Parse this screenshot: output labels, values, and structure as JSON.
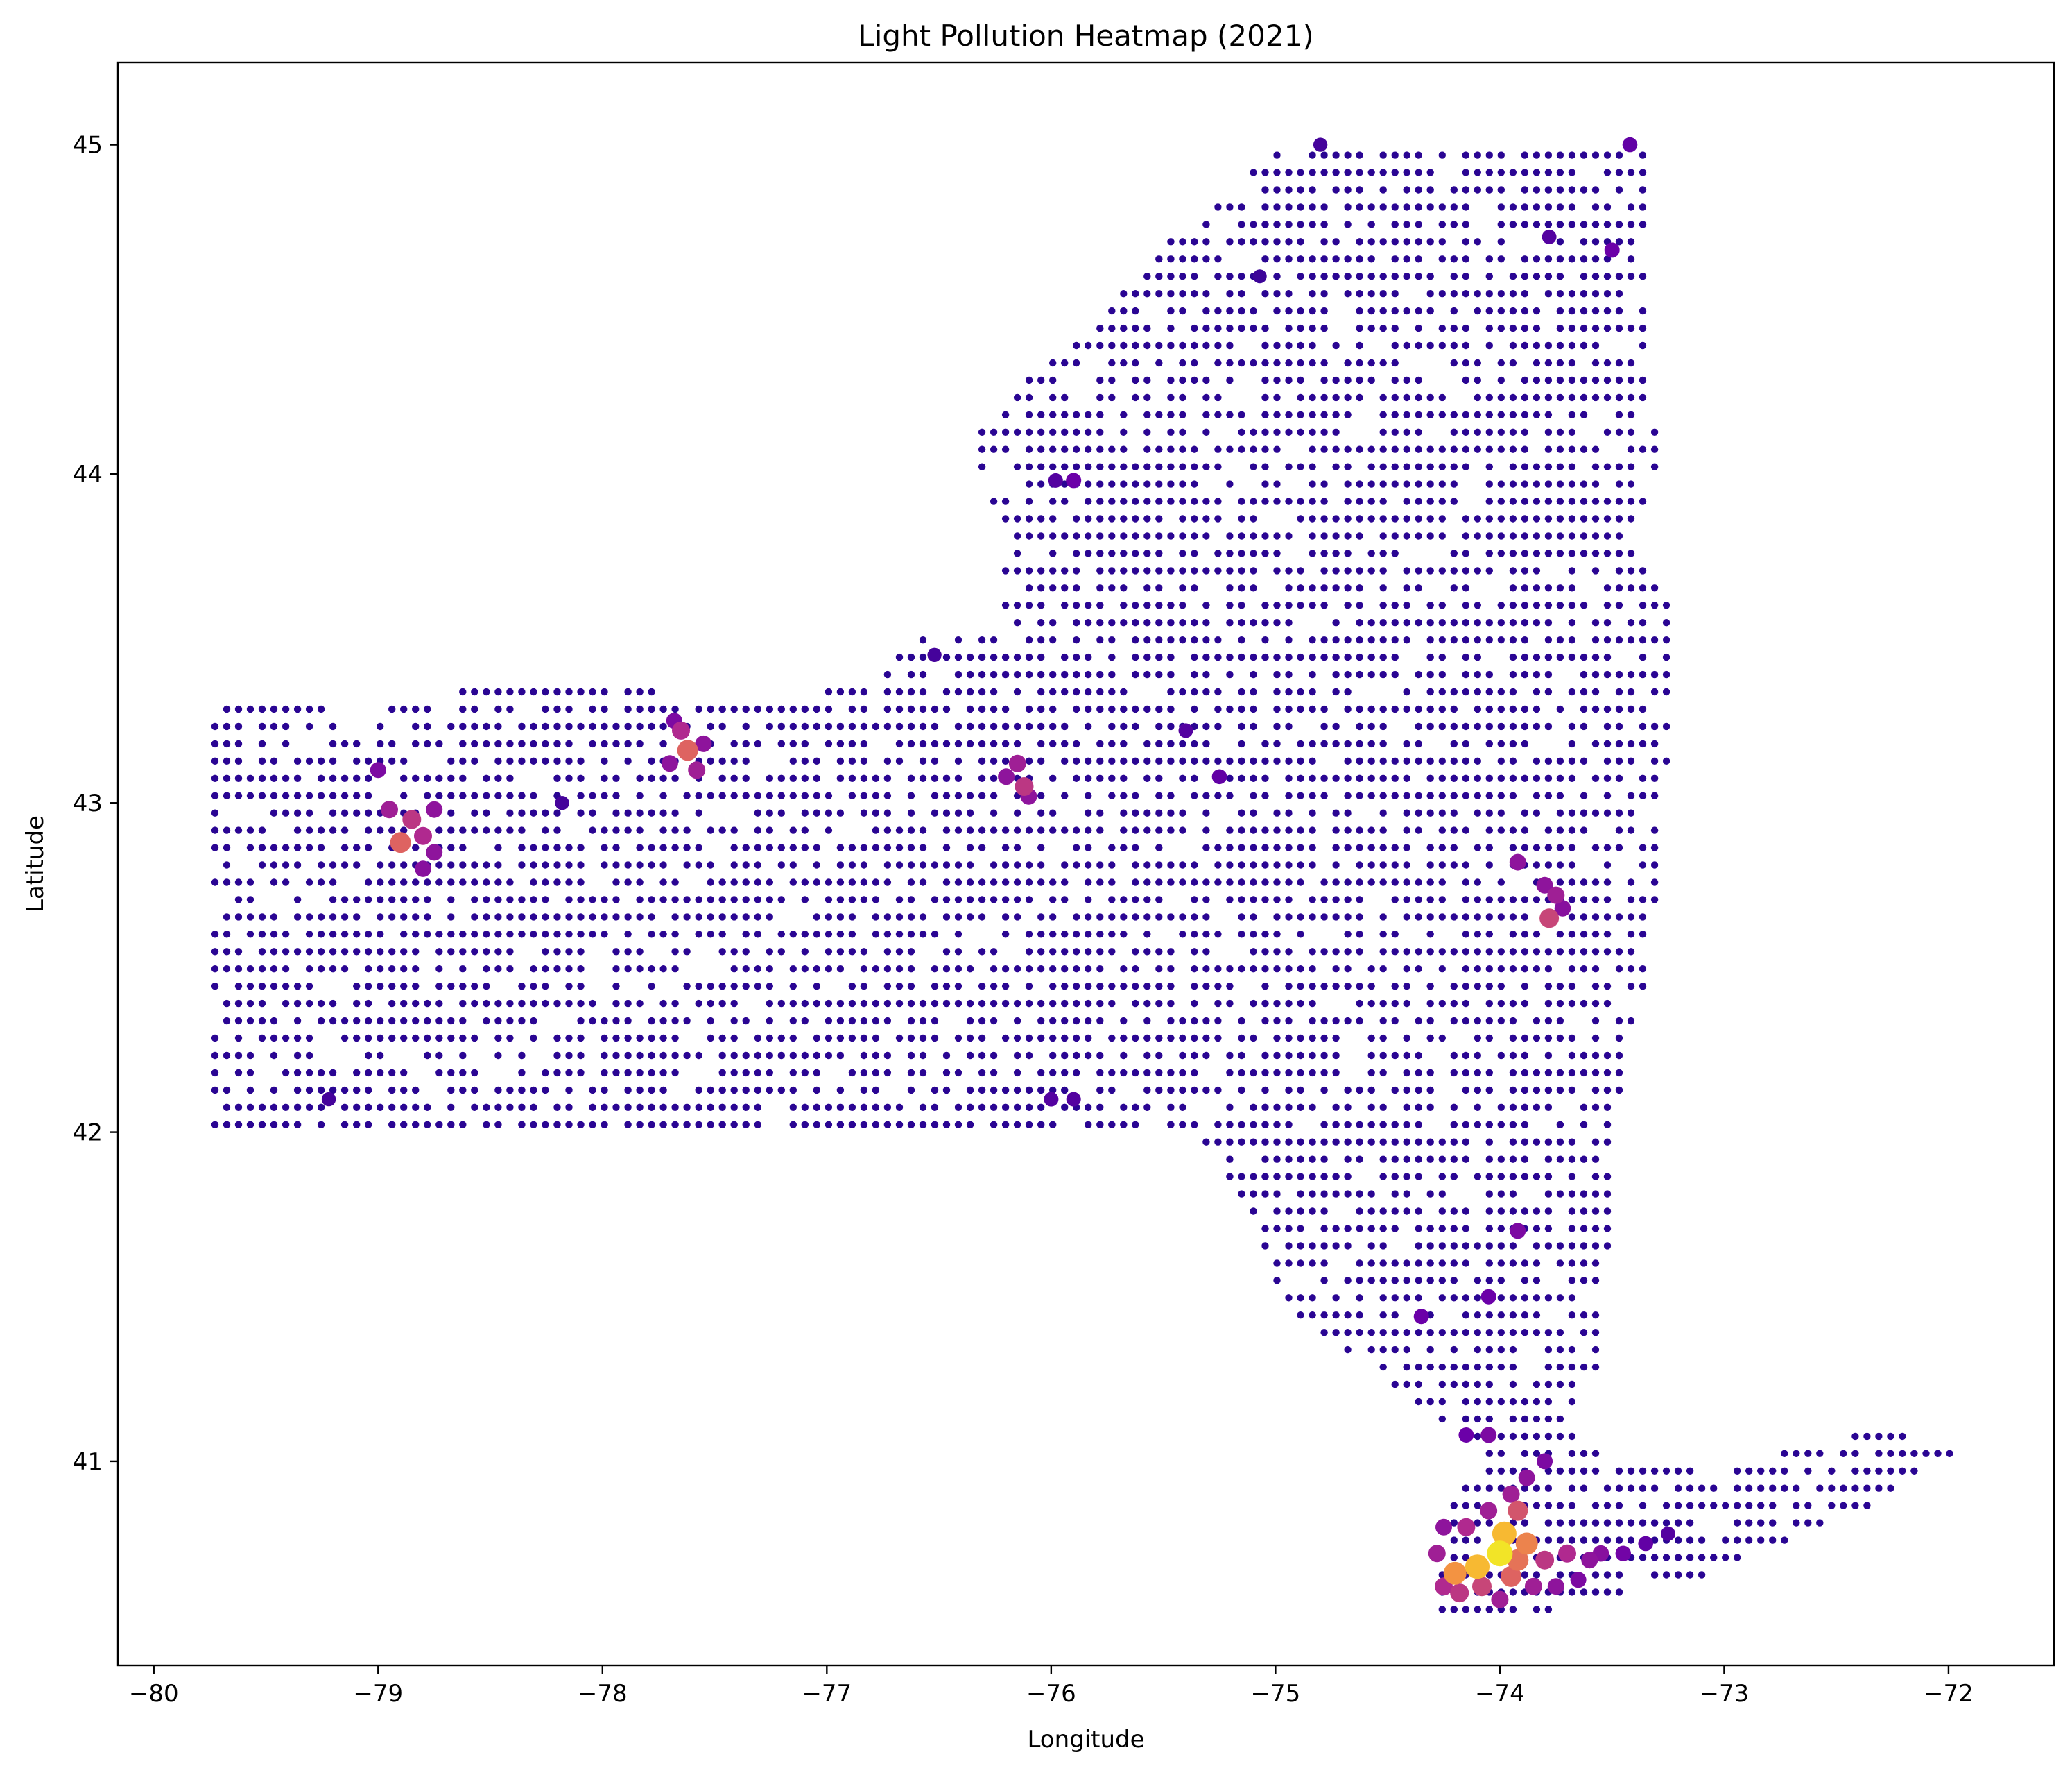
{
  "chart_data": {
    "type": "scatter",
    "title": "Light Pollution Heatmap (2021)",
    "xlabel": "Longitude",
    "ylabel": "Latitude",
    "xlim": [
      -80.16,
      -71.53
    ],
    "ylim": [
      40.38,
      45.25
    ],
    "x_ticks": [
      -80,
      -79,
      -78,
      -77,
      -76,
      -75,
      -74,
      -73,
      -72
    ],
    "y_ticks": [
      41,
      42,
      43,
      44,
      45
    ],
    "x_tick_labels": [
      "−80",
      "−79",
      "−78",
      "−77",
      "−76",
      "−75",
      "−74",
      "−73",
      "−72"
    ],
    "y_tick_labels": [
      "41",
      "42",
      "43",
      "44",
      "45"
    ],
    "grid": false,
    "colormap": "plasma",
    "grid_step_degrees": 0.0526,
    "intensity_range": [
      0,
      1
    ],
    "baseline_color": "#2a0593",
    "highlighted_points": [
      {
        "x": -78.9,
        "y": 42.88,
        "v": 0.6
      },
      {
        "x": -78.85,
        "y": 42.95,
        "v": 0.45
      },
      {
        "x": -78.8,
        "y": 42.9,
        "v": 0.4
      },
      {
        "x": -78.95,
        "y": 42.98,
        "v": 0.35
      },
      {
        "x": -78.75,
        "y": 42.85,
        "v": 0.3
      },
      {
        "x": -79.0,
        "y": 43.1,
        "v": 0.25
      },
      {
        "x": -78.75,
        "y": 42.98,
        "v": 0.3
      },
      {
        "x": -78.8,
        "y": 42.8,
        "v": 0.28
      },
      {
        "x": -77.62,
        "y": 43.16,
        "v": 0.6
      },
      {
        "x": -77.65,
        "y": 43.22,
        "v": 0.4
      },
      {
        "x": -77.58,
        "y": 43.1,
        "v": 0.35
      },
      {
        "x": -77.7,
        "y": 43.12,
        "v": 0.3
      },
      {
        "x": -77.55,
        "y": 43.18,
        "v": 0.3
      },
      {
        "x": -77.68,
        "y": 43.25,
        "v": 0.25
      },
      {
        "x": -76.12,
        "y": 43.05,
        "v": 0.45
      },
      {
        "x": -76.15,
        "y": 43.12,
        "v": 0.35
      },
      {
        "x": -76.2,
        "y": 43.08,
        "v": 0.3
      },
      {
        "x": -76.1,
        "y": 43.02,
        "v": 0.3
      },
      {
        "x": -73.78,
        "y": 42.65,
        "v": 0.5
      },
      {
        "x": -73.75,
        "y": 42.72,
        "v": 0.35
      },
      {
        "x": -73.8,
        "y": 42.75,
        "v": 0.3
      },
      {
        "x": -73.92,
        "y": 42.82,
        "v": 0.3
      },
      {
        "x": -73.72,
        "y": 42.68,
        "v": 0.28
      },
      {
        "x": -73.92,
        "y": 41.7,
        "v": 0.25
      },
      {
        "x": -74.05,
        "y": 41.5,
        "v": 0.2
      },
      {
        "x": -74.35,
        "y": 41.44,
        "v": 0.2
      },
      {
        "x": -75.9,
        "y": 43.98,
        "v": 0.2
      },
      {
        "x": -75.98,
        "y": 43.98,
        "v": 0.15
      },
      {
        "x": -75.25,
        "y": 43.08,
        "v": 0.18
      },
      {
        "x": -75.4,
        "y": 43.22,
        "v": 0.15
      },
      {
        "x": -76.0,
        "y": 42.1,
        "v": 0.15
      },
      {
        "x": -75.9,
        "y": 42.1,
        "v": 0.15
      },
      {
        "x": -73.5,
        "y": 44.68,
        "v": 0.2
      },
      {
        "x": -73.42,
        "y": 45.0,
        "v": 0.18
      },
      {
        "x": -73.78,
        "y": 44.72,
        "v": 0.15
      },
      {
        "x": -74.8,
        "y": 45.0,
        "v": 0.12
      },
      {
        "x": -79.22,
        "y": 42.1,
        "v": 0.12
      },
      {
        "x": -76.52,
        "y": 43.45,
        "v": 0.12
      },
      {
        "x": -78.18,
        "y": 43.0,
        "v": 0.12
      },
      {
        "x": -75.07,
        "y": 44.6,
        "v": 0.1
      },
      {
        "x": -74.05,
        "y": 41.08,
        "v": 0.25
      },
      {
        "x": -74.15,
        "y": 41.08,
        "v": 0.2
      },
      {
        "x": -73.95,
        "y": 40.9,
        "v": 0.35
      },
      {
        "x": -73.88,
        "y": 40.95,
        "v": 0.3
      },
      {
        "x": -73.8,
        "y": 41.0,
        "v": 0.25
      },
      {
        "x": -73.92,
        "y": 40.85,
        "v": 0.55
      },
      {
        "x": -73.98,
        "y": 40.78,
        "v": 0.85
      },
      {
        "x": -74.0,
        "y": 40.72,
        "v": 0.95
      },
      {
        "x": -74.1,
        "y": 40.68,
        "v": 0.85
      },
      {
        "x": -74.2,
        "y": 40.66,
        "v": 0.75
      },
      {
        "x": -73.88,
        "y": 40.75,
        "v": 0.7
      },
      {
        "x": -73.92,
        "y": 40.7,
        "v": 0.65
      },
      {
        "x": -73.95,
        "y": 40.65,
        "v": 0.6
      },
      {
        "x": -74.08,
        "y": 40.62,
        "v": 0.5
      },
      {
        "x": -74.18,
        "y": 40.6,
        "v": 0.45
      },
      {
        "x": -73.8,
        "y": 40.7,
        "v": 0.45
      },
      {
        "x": -73.7,
        "y": 40.72,
        "v": 0.4
      },
      {
        "x": -73.6,
        "y": 40.7,
        "v": 0.3
      },
      {
        "x": -73.55,
        "y": 40.72,
        "v": 0.28
      },
      {
        "x": -73.45,
        "y": 40.72,
        "v": 0.22
      },
      {
        "x": -73.35,
        "y": 40.75,
        "v": 0.18
      },
      {
        "x": -73.25,
        "y": 40.78,
        "v": 0.15
      },
      {
        "x": -74.25,
        "y": 40.8,
        "v": 0.3
      },
      {
        "x": -74.28,
        "y": 40.72,
        "v": 0.35
      },
      {
        "x": -74.05,
        "y": 40.85,
        "v": 0.35
      },
      {
        "x": -74.15,
        "y": 40.8,
        "v": 0.4
      },
      {
        "x": -74.25,
        "y": 40.62,
        "v": 0.4
      },
      {
        "x": -74.0,
        "y": 40.58,
        "v": 0.35
      },
      {
        "x": -73.85,
        "y": 40.62,
        "v": 0.35
      },
      {
        "x": -73.75,
        "y": 40.62,
        "v": 0.3
      },
      {
        "x": -73.65,
        "y": 40.64,
        "v": 0.25
      }
    ]
  }
}
